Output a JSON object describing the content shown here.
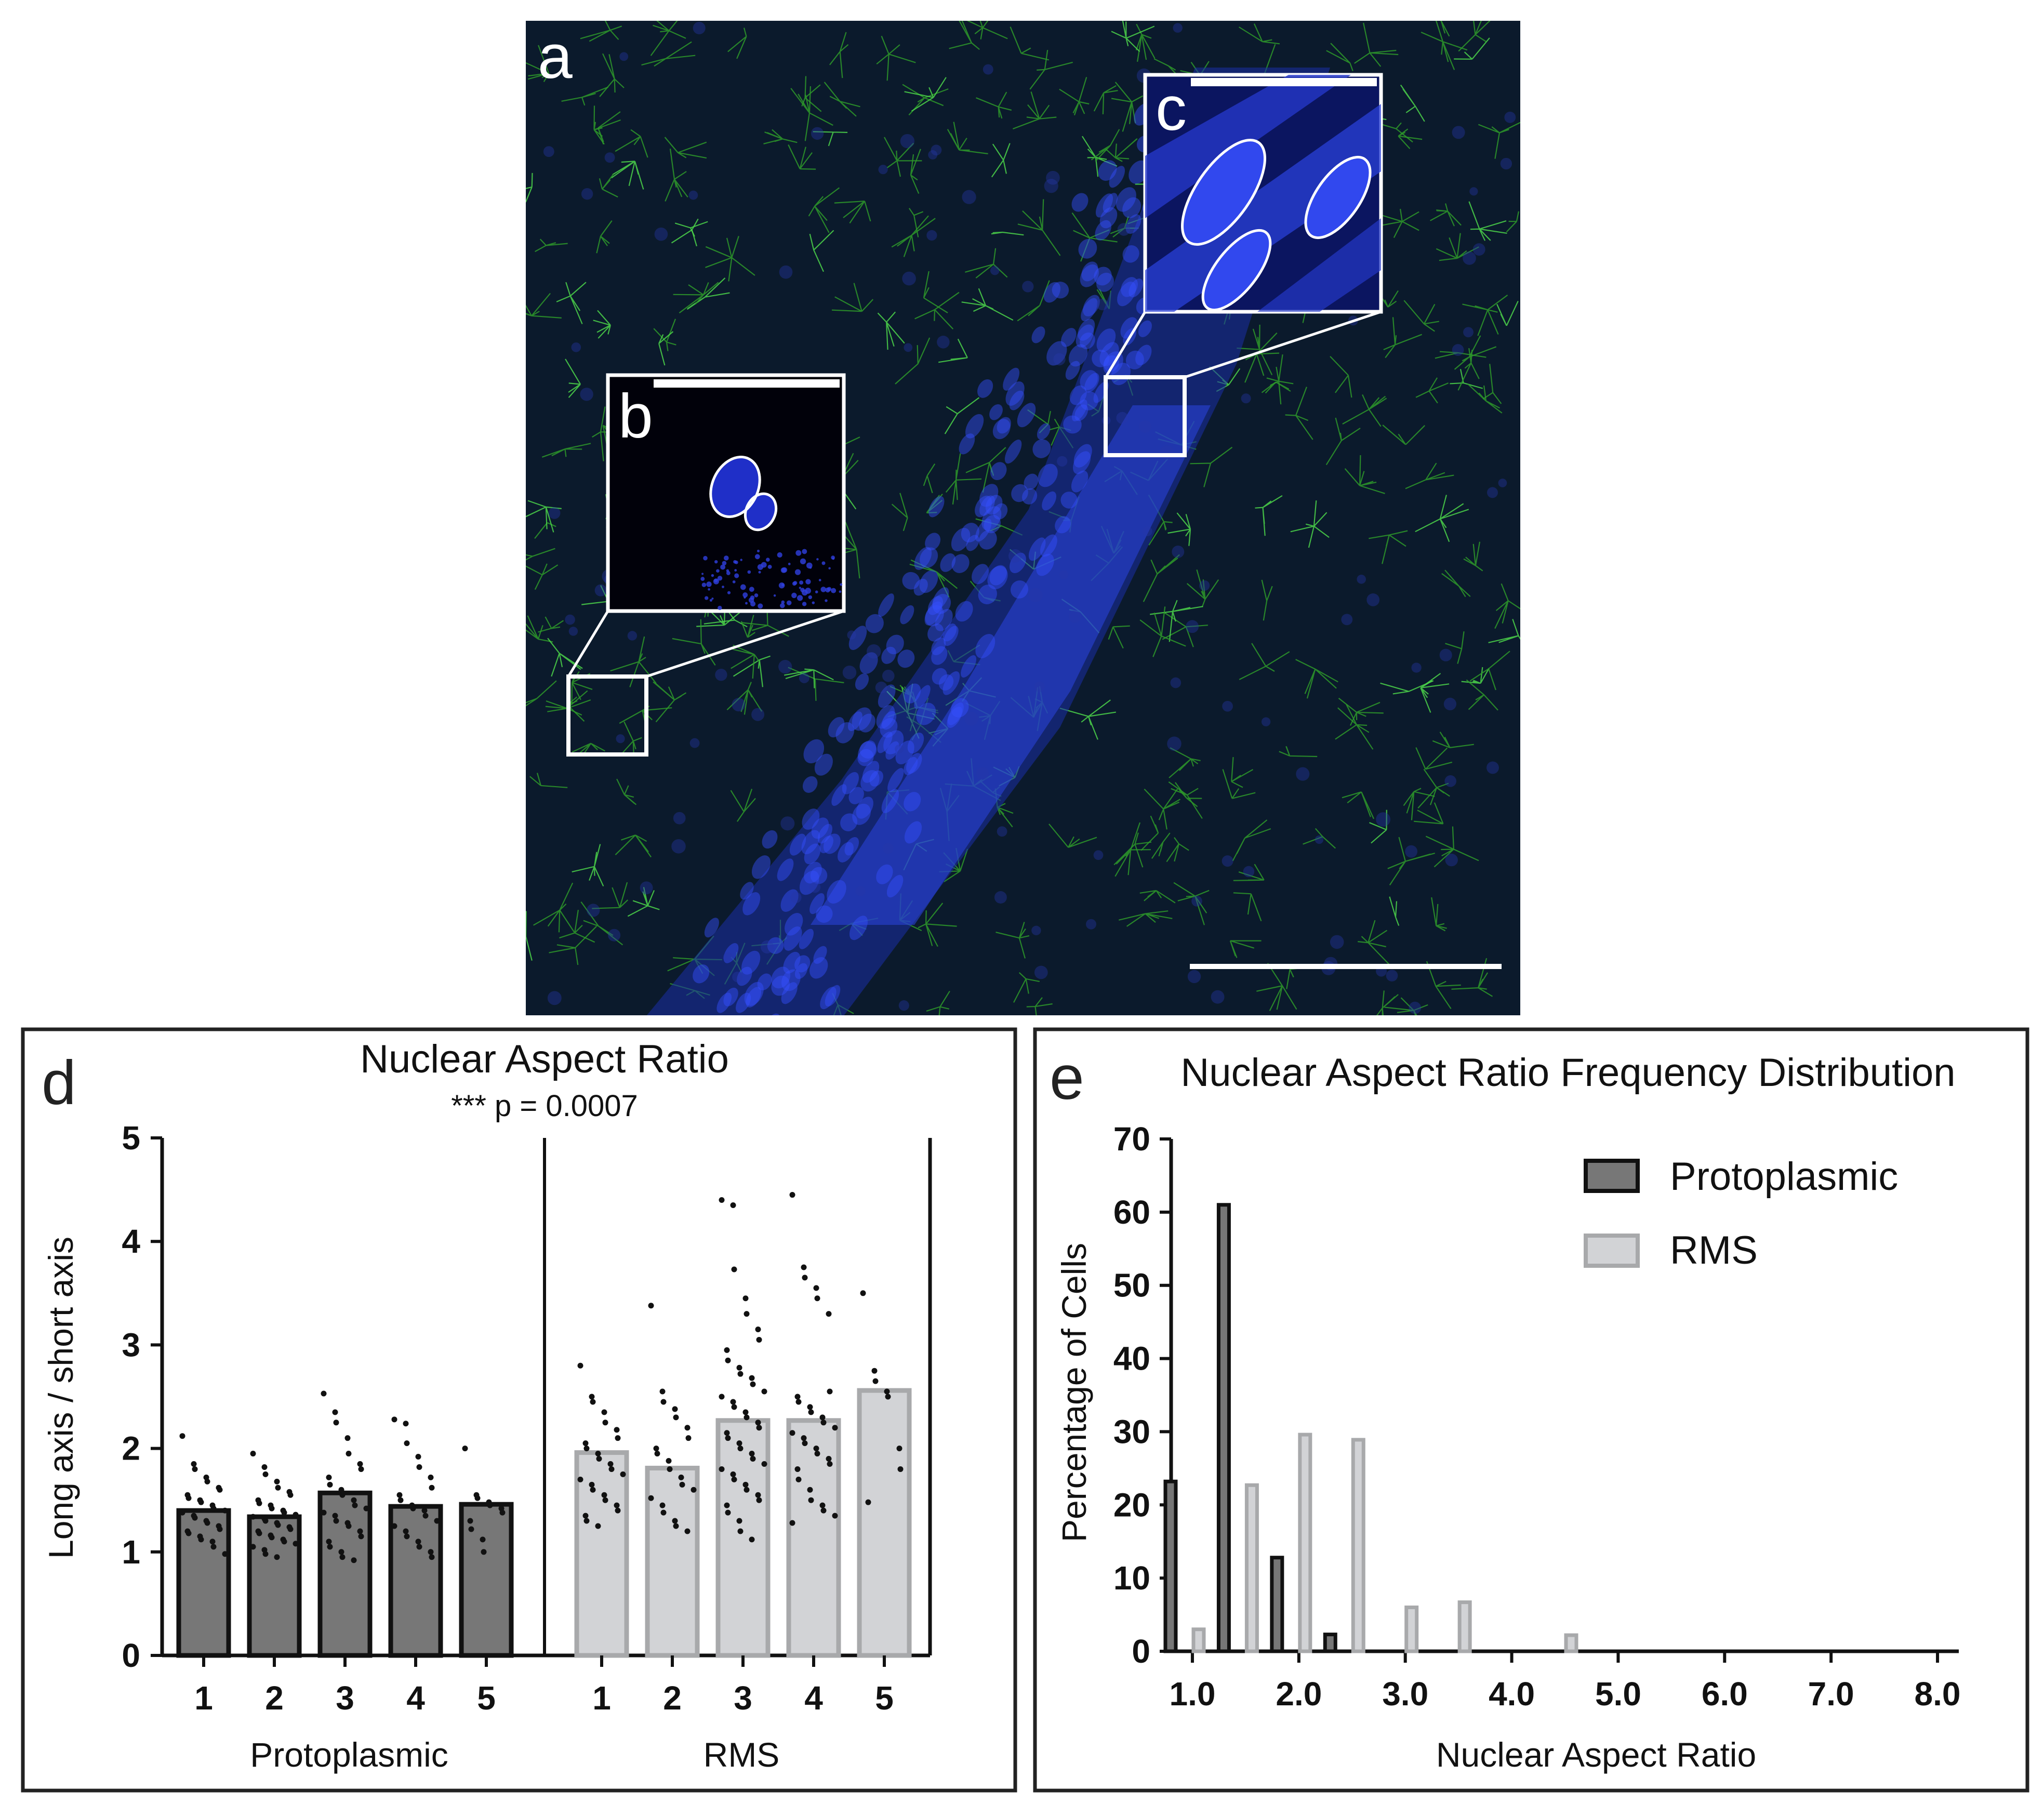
{
  "panels": {
    "a": {
      "letter": "a"
    },
    "b": {
      "letter": "b"
    },
    "c": {
      "letter": "c"
    },
    "d": {
      "letter": "d"
    },
    "e": {
      "letter": "e"
    }
  },
  "colors": {
    "protoplasmic_bar": "#777777",
    "rms_bar": "#d2d3d6",
    "rms_edge": "#a8a9ab",
    "micrograph_bg": "#0a1830",
    "nucleus_blue": "#2b3fd9",
    "gfap_green": "#2e9a2a"
  },
  "chart_data": [
    {
      "panel": "d",
      "type": "bar",
      "title": "Nuclear Aspect Ratio",
      "subtitle": "*** p = 0.0007",
      "ylabel": "Long axis / short axis",
      "ylim": [
        0,
        5
      ],
      "yticks": [
        0,
        1,
        2,
        3,
        4,
        5
      ],
      "grid": false,
      "groups": [
        "Protoplasmic",
        "RMS"
      ],
      "categories": [
        "1",
        "2",
        "3",
        "4",
        "5"
      ],
      "series": [
        {
          "name": "Protoplasmic",
          "values": [
            1.4,
            1.34,
            1.57,
            1.44,
            1.46
          ],
          "points": [
            [
              2.12,
              1.85,
              1.8,
              1.72,
              1.68,
              1.62,
              1.6,
              1.55,
              1.52,
              1.5,
              1.48,
              1.45,
              1.42,
              1.4,
              1.38,
              1.35,
              1.33,
              1.3,
              1.28,
              1.25,
              1.22,
              1.2,
              1.18,
              1.15,
              1.12,
              1.1,
              1.05,
              0.98
            ],
            [
              1.95,
              1.82,
              1.75,
              1.68,
              1.62,
              1.58,
              1.55,
              1.5,
              1.47,
              1.45,
              1.42,
              1.4,
              1.38,
              1.36,
              1.34,
              1.32,
              1.3,
              1.28,
              1.26,
              1.24,
              1.22,
              1.2,
              1.18,
              1.16,
              1.14,
              1.12,
              1.1,
              1.08,
              1.05,
              1.02,
              0.98,
              0.95
            ],
            [
              2.53,
              2.35,
              2.25,
              2.1,
              1.95,
              1.85,
              1.8,
              1.72,
              1.65,
              1.6,
              1.55,
              1.5,
              1.45,
              1.42,
              1.38,
              1.35,
              1.3,
              1.28,
              1.25,
              1.2,
              1.15,
              1.1,
              1.05,
              1.0,
              0.95,
              0.92
            ],
            [
              2.28,
              2.24,
              2.05,
              1.92,
              1.82,
              1.72,
              1.62,
              1.55,
              1.5,
              1.45,
              1.42,
              1.4,
              1.35,
              1.3,
              1.25,
              1.2,
              1.15,
              1.1,
              1.05,
              1.0,
              0.95
            ],
            [
              2.0,
              1.55,
              1.52,
              1.48,
              1.45,
              1.42,
              1.38,
              1.3,
              1.22,
              1.12,
              1.0
            ]
          ]
        },
        {
          "name": "RMS",
          "values": [
            1.96,
            1.81,
            2.27,
            2.27,
            2.56
          ],
          "points": [
            [
              2.8,
              2.5,
              2.45,
              2.35,
              2.25,
              2.18,
              2.1,
              2.05,
              2.0,
              1.95,
              1.9,
              1.85,
              1.8,
              1.75,
              1.7,
              1.65,
              1.6,
              1.55,
              1.5,
              1.45,
              1.4,
              1.35,
              1.3,
              1.25
            ],
            [
              3.38,
              2.55,
              2.45,
              2.38,
              2.3,
              2.2,
              2.1,
              2.0,
              1.95,
              1.88,
              1.8,
              1.72,
              1.65,
              1.6,
              1.52,
              1.45,
              1.38,
              1.3,
              1.25,
              1.2
            ],
            [
              4.4,
              4.35,
              3.73,
              3.45,
              3.3,
              3.15,
              3.05,
              2.95,
              2.85,
              2.78,
              2.72,
              2.68,
              2.62,
              2.55,
              2.5,
              2.45,
              2.4,
              2.35,
              2.3,
              2.25,
              2.2,
              2.15,
              2.1,
              2.05,
              2.0,
              1.95,
              1.9,
              1.85,
              1.8,
              1.75,
              1.7,
              1.65,
              1.6,
              1.55,
              1.5,
              1.45,
              1.38,
              1.3,
              1.2,
              1.12
            ],
            [
              4.45,
              3.75,
              3.65,
              3.55,
              3.45,
              3.3,
              2.55,
              2.5,
              2.45,
              2.4,
              2.35,
              2.3,
              2.25,
              2.2,
              2.15,
              2.1,
              2.05,
              2.0,
              1.95,
              1.9,
              1.85,
              1.8,
              1.7,
              1.6,
              1.5,
              1.45,
              1.4,
              1.35,
              1.28
            ],
            [
              3.5,
              2.75,
              2.65,
              2.55,
              2.5,
              2.0,
              1.8,
              1.48
            ]
          ]
        }
      ]
    },
    {
      "panel": "e",
      "type": "bar",
      "title": "Nuclear Aspect Ratio Frequency Distribution",
      "xlabel": "Nuclear Aspect Ratio",
      "ylabel": "Percentage of Cells",
      "xlim": [
        0.8,
        8.2
      ],
      "ylim": [
        0,
        70
      ],
      "xticks": [
        "1.0",
        "2.0",
        "3.0",
        "4.0",
        "5.0",
        "6.0",
        "7.0",
        "8.0"
      ],
      "yticks": [
        0,
        10,
        20,
        30,
        40,
        50,
        60,
        70
      ],
      "legend": "top-right",
      "grid": false,
      "series": [
        {
          "name": "Protoplasmic",
          "x": [
            1.0,
            1.5,
            2.0,
            2.5
          ],
          "values": [
            23.2,
            61.0,
            12.8,
            2.3
          ]
        },
        {
          "name": "RMS",
          "x": [
            1.0,
            1.5,
            2.0,
            2.5,
            3.0,
            3.5,
            4.5
          ],
          "values": [
            3.0,
            22.7,
            29.6,
            28.9,
            6.0,
            6.7,
            2.2
          ]
        }
      ]
    }
  ]
}
